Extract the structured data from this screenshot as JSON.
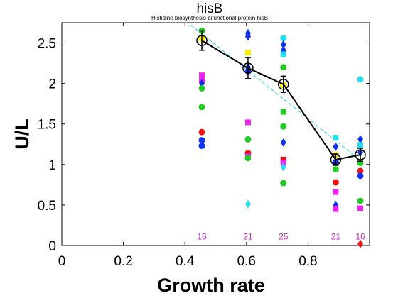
{
  "chart_data": {
    "type": "scatter",
    "title": "hisB",
    "subtitle": "Histidine biosynthesis bifunctional protein hisB",
    "xlabel": "Growth rate",
    "ylabel": "U/L",
    "xlim": [
      0,
      1.0
    ],
    "ylim": [
      0,
      2.75
    ],
    "xticks": [
      0,
      0.2,
      0.4,
      0.6,
      0.8
    ],
    "xtick_labels": [
      "0",
      "0.2",
      "0.4",
      "0.6",
      "0.8"
    ],
    "yticks": [
      0,
      0.5,
      1,
      1.5,
      2,
      2.5
    ],
    "ytick_labels": [
      "0",
      "0.5",
      "1",
      "1.5",
      "2",
      "2.5"
    ],
    "grid": false,
    "legend": "none",
    "mean_series": {
      "x": [
        0.455,
        0.605,
        0.72,
        0.89,
        0.97
      ],
      "y": [
        2.53,
        2.19,
        1.99,
        1.06,
        1.12
      ],
      "err": [
        0.12,
        0.13,
        0.1,
        0.07,
        0.08
      ],
      "color": "#000000"
    },
    "fit_line": {
      "x": [
        0.42,
        0.98
      ],
      "y": [
        2.72,
        1.02
      ],
      "color": "#22ccee"
    },
    "counts": {
      "x": [
        0.455,
        0.605,
        0.72,
        0.89,
        0.97
      ],
      "labels": [
        "16",
        "21",
        "25",
        "21",
        "16"
      ],
      "y": 0.11,
      "color": "#cc22cc"
    },
    "points": [
      {
        "x": 0.455,
        "y": 2.65,
        "color": "#22cc22",
        "shape": "circle"
      },
      {
        "x": 0.455,
        "y": 2.55,
        "color": "#ffee00",
        "shape": "circle"
      },
      {
        "x": 0.455,
        "y": 2.1,
        "color": "#ee22ee",
        "shape": "square"
      },
      {
        "x": 0.455,
        "y": 2.04,
        "color": "#ee22ee",
        "shape": "square"
      },
      {
        "x": 0.455,
        "y": 2.0,
        "color": "#1133ee",
        "shape": "diamond"
      },
      {
        "x": 0.455,
        "y": 1.94,
        "color": "#22cc22",
        "shape": "circle"
      },
      {
        "x": 0.455,
        "y": 1.71,
        "color": "#22cc22",
        "shape": "circle"
      },
      {
        "x": 0.455,
        "y": 1.4,
        "color": "#ee1111",
        "shape": "circle"
      },
      {
        "x": 0.455,
        "y": 1.3,
        "color": "#1133ee",
        "shape": "circle"
      },
      {
        "x": 0.455,
        "y": 1.23,
        "color": "#1133ee",
        "shape": "circle"
      },
      {
        "x": 0.605,
        "y": 2.62,
        "color": "#1133ee",
        "shape": "diamond"
      },
      {
        "x": 0.605,
        "y": 2.58,
        "color": "#1133ee",
        "shape": "diamond"
      },
      {
        "x": 0.605,
        "y": 2.38,
        "color": "#ffee00",
        "shape": "square"
      },
      {
        "x": 0.605,
        "y": 2.2,
        "color": "#1133ee",
        "shape": "diamond"
      },
      {
        "x": 0.605,
        "y": 2.15,
        "color": "#1133ee",
        "shape": "circle"
      },
      {
        "x": 0.605,
        "y": 1.52,
        "color": "#ee22ee",
        "shape": "square"
      },
      {
        "x": 0.605,
        "y": 1.31,
        "color": "#22cc22",
        "shape": "circle"
      },
      {
        "x": 0.605,
        "y": 1.14,
        "color": "#ee1111",
        "shape": "circle"
      },
      {
        "x": 0.605,
        "y": 1.1,
        "color": "#ee22ee",
        "shape": "square"
      },
      {
        "x": 0.605,
        "y": 1.08,
        "color": "#22cc22",
        "shape": "circle"
      },
      {
        "x": 0.605,
        "y": 0.51,
        "color": "#22ddee",
        "shape": "diamond"
      },
      {
        "x": 0.72,
        "y": 2.56,
        "color": "#22ddee",
        "shape": "circle"
      },
      {
        "x": 0.72,
        "y": 2.48,
        "color": "#1133ee",
        "shape": "diamond"
      },
      {
        "x": 0.72,
        "y": 2.41,
        "color": "#1133ee",
        "shape": "diamond"
      },
      {
        "x": 0.72,
        "y": 2.36,
        "color": "#22ddee",
        "shape": "square"
      },
      {
        "x": 0.72,
        "y": 2.2,
        "color": "#22cc22",
        "shape": "circle"
      },
      {
        "x": 0.72,
        "y": 1.98,
        "color": "#ffee00",
        "shape": "circle"
      },
      {
        "x": 0.72,
        "y": 1.65,
        "color": "#22cc22",
        "shape": "square"
      },
      {
        "x": 0.72,
        "y": 1.47,
        "color": "#22cc22",
        "shape": "circle"
      },
      {
        "x": 0.72,
        "y": 1.27,
        "color": "#1133ee",
        "shape": "diamond"
      },
      {
        "x": 0.72,
        "y": 1.06,
        "color": "#ee1111",
        "shape": "square"
      },
      {
        "x": 0.72,
        "y": 1.02,
        "color": "#ee22ee",
        "shape": "square"
      },
      {
        "x": 0.72,
        "y": 0.97,
        "color": "#22ddee",
        "shape": "diamond"
      },
      {
        "x": 0.72,
        "y": 0.77,
        "color": "#22cc22",
        "shape": "circle"
      },
      {
        "x": 0.89,
        "y": 1.33,
        "color": "#22ddee",
        "shape": "square"
      },
      {
        "x": 0.89,
        "y": 1.22,
        "color": "#1133ee",
        "shape": "diamond"
      },
      {
        "x": 0.89,
        "y": 1.12,
        "color": "#ffee00",
        "shape": "circle"
      },
      {
        "x": 0.89,
        "y": 1.03,
        "color": "#1133ee",
        "shape": "circle"
      },
      {
        "x": 0.89,
        "y": 0.94,
        "color": "#22cc22",
        "shape": "circle"
      },
      {
        "x": 0.89,
        "y": 0.78,
        "color": "#ee1111",
        "shape": "circle"
      },
      {
        "x": 0.89,
        "y": 0.66,
        "color": "#ee22ee",
        "shape": "square"
      },
      {
        "x": 0.89,
        "y": 0.5,
        "color": "#1133ee",
        "shape": "diamond"
      },
      {
        "x": 0.89,
        "y": 0.45,
        "color": "#ee22ee",
        "shape": "square"
      },
      {
        "x": 0.97,
        "y": 2.05,
        "color": "#22ddee",
        "shape": "circle"
      },
      {
        "x": 0.97,
        "y": 1.31,
        "color": "#1133ee",
        "shape": "diamond"
      },
      {
        "x": 0.97,
        "y": 1.24,
        "color": "#22ddee",
        "shape": "square"
      },
      {
        "x": 0.97,
        "y": 1.15,
        "color": "#1133ee",
        "shape": "diamond"
      },
      {
        "x": 0.97,
        "y": 1.02,
        "color": "#22cc22",
        "shape": "circle"
      },
      {
        "x": 0.97,
        "y": 0.92,
        "color": "#ee1111",
        "shape": "circle"
      },
      {
        "x": 0.97,
        "y": 0.86,
        "color": "#1133ee",
        "shape": "circle"
      },
      {
        "x": 0.97,
        "y": 0.55,
        "color": "#22cc22",
        "shape": "circle"
      },
      {
        "x": 0.97,
        "y": 0.46,
        "color": "#ee22ee",
        "shape": "square"
      },
      {
        "x": 0.97,
        "y": 0.02,
        "color": "#ee1111",
        "shape": "diamond"
      }
    ]
  }
}
